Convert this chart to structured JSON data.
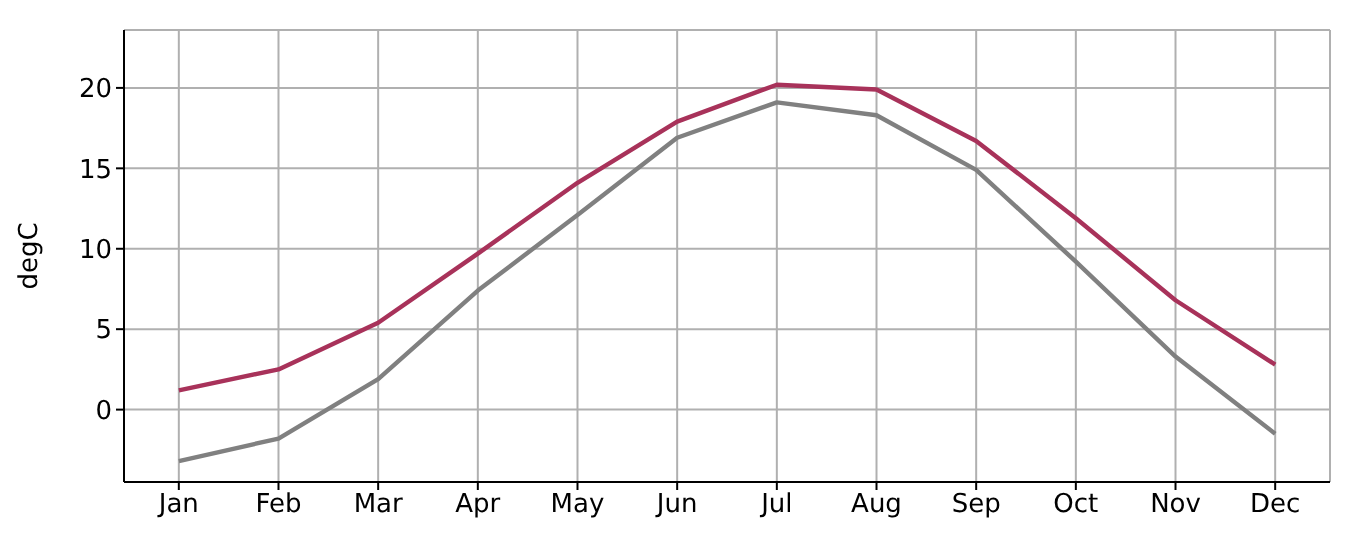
{
  "chart_data": {
    "type": "line",
    "ylabel": "degC",
    "categories": [
      "Jan",
      "Feb",
      "Mar",
      "Apr",
      "May",
      "Jun",
      "Jul",
      "Aug",
      "Sep",
      "Oct",
      "Nov",
      "Dec"
    ],
    "series": [
      {
        "color": "#a8325a",
        "values": [
          1.2,
          2.5,
          5.4,
          9.7,
          14.1,
          17.9,
          20.2,
          19.9,
          16.7,
          11.9,
          6.8,
          2.8
        ]
      },
      {
        "color": "#808080",
        "values": [
          -3.2,
          -1.8,
          1.9,
          7.4,
          12.1,
          16.9,
          19.1,
          18.3,
          14.9,
          9.2,
          3.3,
          -1.5
        ]
      }
    ],
    "ylim": [
      -4.5,
      23.6
    ],
    "yticks": [
      0,
      5,
      10,
      15,
      20
    ],
    "grid": true,
    "marker": "none",
    "line_style": "solid"
  }
}
